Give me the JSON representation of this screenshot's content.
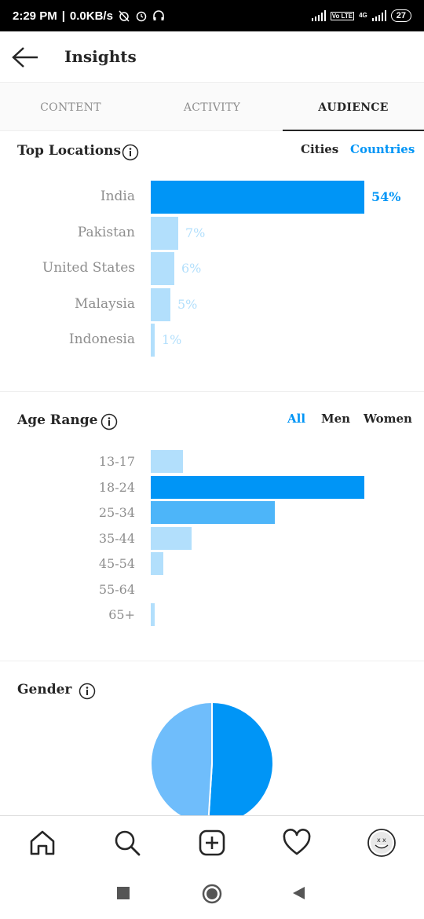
{
  "status_bar": {
    "time": "2:29 PM",
    "speed": "0.0KB/s",
    "network": "4G",
    "volte": "Vo LTE",
    "battery": "27"
  },
  "header": {
    "title": "Insights"
  },
  "tabs": [
    {
      "label": "CONTENT",
      "active": false
    },
    {
      "label": "ACTIVITY",
      "active": false
    },
    {
      "label": "AUDIENCE",
      "active": true
    }
  ],
  "top_locations": {
    "title": "Top Locations",
    "toggles": [
      {
        "label": "Cities",
        "selected": false
      },
      {
        "label": "Countries",
        "selected": true
      }
    ],
    "rows": [
      {
        "label": "India",
        "percent": 54,
        "text": "54%"
      },
      {
        "label": "Pakistan",
        "percent": 7,
        "text": "7%"
      },
      {
        "label": "United States",
        "percent": 6,
        "text": "6%"
      },
      {
        "label": "Malaysia",
        "percent": 5,
        "text": "5%"
      },
      {
        "label": "Indonesia",
        "percent": 1,
        "text": "1%"
      }
    ],
    "colors": {
      "top": "#0095f6",
      "other": "#b2dffc",
      "top_text": "#0095f6",
      "other_text": "#b2dffc"
    }
  },
  "age_range": {
    "title": "Age Range",
    "toggles": [
      {
        "label": "All",
        "selected": true
      },
      {
        "label": "Men",
        "selected": false
      },
      {
        "label": "Women",
        "selected": false
      }
    ],
    "rows": [
      {
        "label": "13-17",
        "value": 15
      },
      {
        "label": "18-24",
        "value": 100
      },
      {
        "label": "25-34",
        "value": 58
      },
      {
        "label": "35-44",
        "value": 19
      },
      {
        "label": "45-54",
        "value": 6
      },
      {
        "label": "55-64",
        "value": 0
      },
      {
        "label": "65+",
        "value": 2
      }
    ],
    "colors": {
      "max": "#0095f6",
      "mid": "#4db5f9",
      "low": "#b2dffc"
    }
  },
  "gender": {
    "title": "Gender",
    "slices": [
      {
        "share": 0.51,
        "color": "#0095f6"
      },
      {
        "share": 0.49,
        "color": "#6fbdfb"
      }
    ]
  },
  "bottom_nav": {
    "icons": [
      "home-icon",
      "search-icon",
      "add-post-icon",
      "heart-icon",
      "profile-avatar-icon"
    ]
  },
  "system_nav": {
    "icons": [
      "recents-icon",
      "home-circle-icon",
      "back-triangle-icon"
    ]
  }
}
